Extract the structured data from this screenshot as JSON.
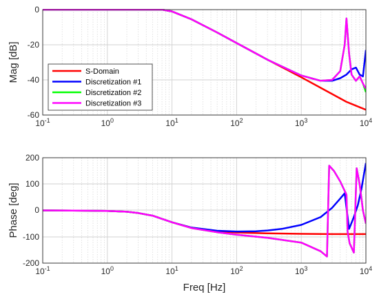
{
  "chart_data": [
    {
      "type": "line",
      "xscale": "log",
      "xlim": [
        0.1,
        10000
      ],
      "ylim": [
        -60,
        0
      ],
      "xlabel": "",
      "ylabel": "Mag [dB]",
      "grid": true,
      "legend_position": "bottom-left",
      "xticks": [
        {
          "base": "10",
          "exp": "-1"
        },
        {
          "base": "10",
          "exp": "0"
        },
        {
          "base": "10",
          "exp": "1"
        },
        {
          "base": "10",
          "exp": "2"
        },
        {
          "base": "10",
          "exp": "3"
        },
        {
          "base": "10",
          "exp": "4"
        }
      ],
      "yticks": [
        "0",
        "-20",
        "-40",
        "-60"
      ],
      "series": [
        {
          "name": "S-Domain",
          "color": "#ff0000",
          "x": [
            0.1,
            0.5,
            1,
            2,
            3,
            7,
            10,
            20,
            50,
            100,
            300,
            1000,
            2000,
            5000,
            10000
          ],
          "y": [
            0,
            0,
            0,
            0,
            0,
            0,
            -1,
            -5.5,
            -13,
            -19,
            -28.5,
            -38.5,
            -44.5,
            -52.5,
            -57
          ]
        },
        {
          "name": "Discretization #1",
          "color": "#0000ff",
          "x": [
            0.1,
            0.5,
            1,
            2,
            3,
            7,
            10,
            20,
            50,
            100,
            300,
            1000,
            2000,
            3000,
            4000,
            5000,
            6000,
            7000,
            8000,
            9000,
            10000
          ],
          "y": [
            0,
            0,
            0,
            0,
            0,
            0,
            -1,
            -5.5,
            -13,
            -19,
            -28.5,
            -37.5,
            -40.5,
            -40.5,
            -39,
            -37,
            -34,
            -33,
            -37,
            -38,
            -23
          ]
        },
        {
          "name": "Discretization #2",
          "color": "#00ff00",
          "x": [
            0.1,
            0.5,
            1,
            2,
            3,
            7,
            10,
            20,
            50,
            100,
            300,
            1000,
            2000,
            3000,
            4000,
            4700,
            5000,
            5500,
            6000,
            7000,
            8000,
            9000,
            10000
          ],
          "y": [
            0,
            0,
            0,
            0,
            0,
            0,
            -1,
            -5.5,
            -13,
            -19,
            -28.5,
            -37.5,
            -40.5,
            -40,
            -35,
            -20,
            -5,
            -25,
            -37,
            -40.5,
            -38,
            -42,
            -47
          ]
        },
        {
          "name": "Discretization #3",
          "color": "#ff00ff",
          "x": [
            0.1,
            0.5,
            1,
            2,
            3,
            7,
            10,
            20,
            50,
            100,
            300,
            1000,
            2000,
            3000,
            4000,
            4700,
            5000,
            5500,
            6000,
            7000,
            8000,
            9000,
            10000
          ],
          "y": [
            0,
            0,
            0,
            0,
            0,
            0,
            -1,
            -5.5,
            -13,
            -19,
            -28.5,
            -37.5,
            -40.5,
            -40,
            -35,
            -20,
            -5,
            -25,
            -37,
            -40.5,
            -38,
            -42,
            -45
          ]
        }
      ]
    },
    {
      "type": "line",
      "xscale": "log",
      "xlim": [
        0.1,
        10000
      ],
      "ylim": [
        -200,
        200
      ],
      "xlabel": "Freq [Hz]",
      "ylabel": "Phase [deg]",
      "grid": true,
      "xticks": [
        {
          "base": "10",
          "exp": "-1"
        },
        {
          "base": "10",
          "exp": "0"
        },
        {
          "base": "10",
          "exp": "1"
        },
        {
          "base": "10",
          "exp": "2"
        },
        {
          "base": "10",
          "exp": "3"
        },
        {
          "base": "10",
          "exp": "4"
        }
      ],
      "yticks": [
        "200",
        "100",
        "0",
        "-100",
        "-200"
      ],
      "series": [
        {
          "name": "S-Domain",
          "color": "#ff0000",
          "x": [
            0.1,
            0.5,
            1,
            2,
            3,
            5,
            10,
            20,
            50,
            100,
            300,
            1000,
            3000,
            10000
          ],
          "y": [
            0,
            -1,
            -2,
            -5,
            -10,
            -20,
            -45,
            -65,
            -79,
            -84,
            -87,
            -89,
            -90,
            -90
          ]
        },
        {
          "name": "Discretization #1",
          "color": "#0000ff",
          "x": [
            0.1,
            0.5,
            1,
            2,
            3,
            5,
            10,
            20,
            50,
            100,
            200,
            300,
            500,
            1000,
            2000,
            3000,
            4000,
            4700,
            5500,
            6500,
            7500,
            8500,
            10000
          ],
          "y": [
            0,
            -1,
            -2,
            -5,
            -10,
            -20,
            -45,
            -65,
            -77,
            -80,
            -79,
            -76,
            -70,
            -55,
            -25,
            10,
            45,
            65,
            -70,
            -25,
            20,
            80,
            180
          ]
        },
        {
          "name": "Discretization #2",
          "color": "#00ff00",
          "x": [
            0.1,
            0.5,
            1,
            2,
            3,
            5,
            10,
            20,
            50,
            100,
            300,
            1000,
            2000,
            2500,
            2700,
            3200,
            4000,
            5000,
            5200,
            5600,
            6500,
            7200,
            8000,
            9000,
            10000
          ],
          "y": [
            0,
            -1,
            -2,
            -5,
            -10,
            -20,
            -45,
            -67,
            -83,
            -92,
            -104,
            -122,
            -155,
            -175,
            170,
            150,
            110,
            60,
            -80,
            -125,
            -160,
            160,
            100,
            0,
            -50
          ]
        },
        {
          "name": "Discretization #3",
          "color": "#ff00ff",
          "x": [
            0.1,
            0.5,
            1,
            2,
            3,
            5,
            10,
            20,
            50,
            100,
            300,
            1000,
            2000,
            2500,
            2700,
            3200,
            4000,
            5000,
            5200,
            5600,
            6500,
            7200,
            8000,
            9000,
            10000
          ],
          "y": [
            0,
            -1,
            -2,
            -5,
            -10,
            -20,
            -45,
            -67,
            -83,
            -92,
            -104,
            -122,
            -155,
            -175,
            170,
            150,
            110,
            60,
            -80,
            -125,
            -160,
            160,
            100,
            0,
            -50
          ]
        }
      ]
    }
  ]
}
